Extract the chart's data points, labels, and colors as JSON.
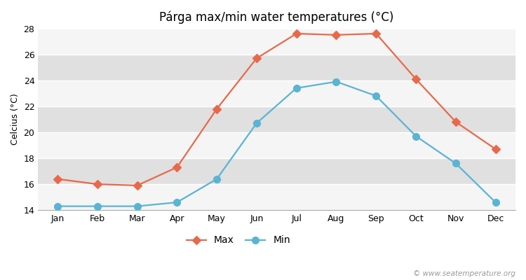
{
  "title": "Párga max/min water temperatures (°C)",
  "ylabel": "Celcius (°C)",
  "months": [
    "Jan",
    "Feb",
    "Mar",
    "Apr",
    "May",
    "Jun",
    "Jul",
    "Aug",
    "Sep",
    "Oct",
    "Nov",
    "Dec"
  ],
  "max_values": [
    16.4,
    16.0,
    15.9,
    17.3,
    21.8,
    25.7,
    27.6,
    27.5,
    27.6,
    24.1,
    20.8,
    18.7
  ],
  "min_values": [
    14.3,
    14.3,
    14.3,
    14.6,
    16.4,
    20.7,
    23.4,
    23.9,
    22.8,
    19.7,
    17.6,
    14.6
  ],
  "max_color": "#e8694a",
  "min_color": "#5ab4d4",
  "fig_bg_color": "#ffffff",
  "plot_bg_color": "#ebebeb",
  "band_color_light": "#f5f5f5",
  "band_color_dark": "#e0e0e0",
  "grid_color": "#ffffff",
  "ylim": [
    14,
    28
  ],
  "yticks": [
    14,
    16,
    18,
    20,
    22,
    24,
    26,
    28
  ],
  "watermark": "© www.seatemperature.org",
  "legend_max": "Max",
  "legend_min": "Min",
  "title_fontsize": 12,
  "axis_label_fontsize": 9,
  "tick_fontsize": 9,
  "legend_fontsize": 10,
  "max_marker": "D",
  "min_marker": "o",
  "max_marker_size": 6,
  "min_marker_size": 7,
  "line_width": 1.6
}
